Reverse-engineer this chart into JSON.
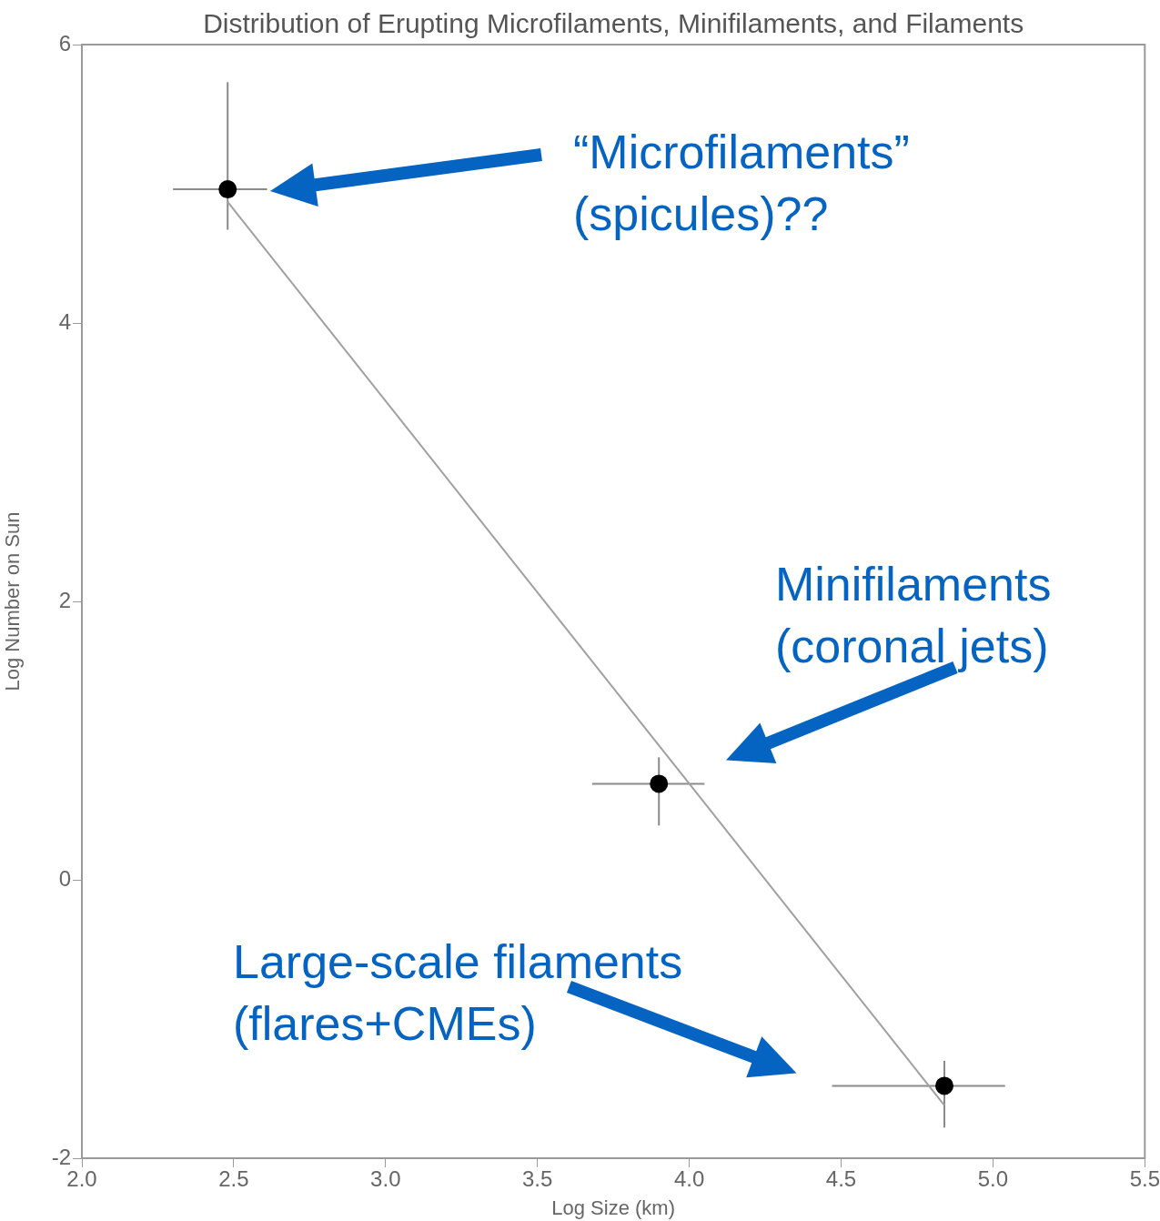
{
  "chart_data": {
    "type": "scatter",
    "title": "Distribution of Erupting Microfilaments, Minifilaments, and Filaments",
    "xlabel": "Log Size (km)",
    "ylabel": "Log Number on Sun",
    "xlim": [
      2.0,
      5.5
    ],
    "xticks": [
      {
        "value": 2,
        "label": "2.0"
      },
      {
        "value": 2.5,
        "label": "2.5"
      },
      {
        "value": 3,
        "label": "3.0"
      },
      {
        "value": 3.5,
        "label": "3.5"
      },
      {
        "value": 4,
        "label": "4.0"
      },
      {
        "value": 4.5,
        "label": "4.5"
      },
      {
        "value": 5,
        "label": "5.0"
      },
      {
        "value": 5.5,
        "label": "5.5"
      }
    ],
    "ylim": [
      -2,
      6
    ],
    "yticks": [
      -2,
      0,
      2,
      4,
      6
    ],
    "grid": false,
    "legend": false,
    "marker": "circle",
    "series": [
      {
        "type": "scatter",
        "color": "#000000",
        "x": [
          2.48,
          3.9,
          4.84
        ],
        "values": [
          4.96,
          0.69,
          -1.48
        ],
        "errors": [
          [
            4.67,
            5.73
          ],
          [
            0.39,
            0.88
          ],
          [
            -1.78,
            -1.3
          ]
        ],
        "xerrors": [
          [
            2.3,
            2.61
          ],
          [
            3.68,
            4.05
          ],
          [
            4.47,
            5.04
          ]
        ]
      },
      {
        "type": "line",
        "color": "#a0a0a0",
        "x": [
          2.48,
          4.84
        ],
        "values": [
          4.87,
          -1.62
        ],
        "marker": "none",
        "line_style": "solid"
      }
    ],
    "annotations": [
      "“Microfilaments”\n(spicules)??",
      "Minifilaments\n(coronal jets)",
      "Large-scale filaments\n(flares+CMEs)"
    ]
  }
}
